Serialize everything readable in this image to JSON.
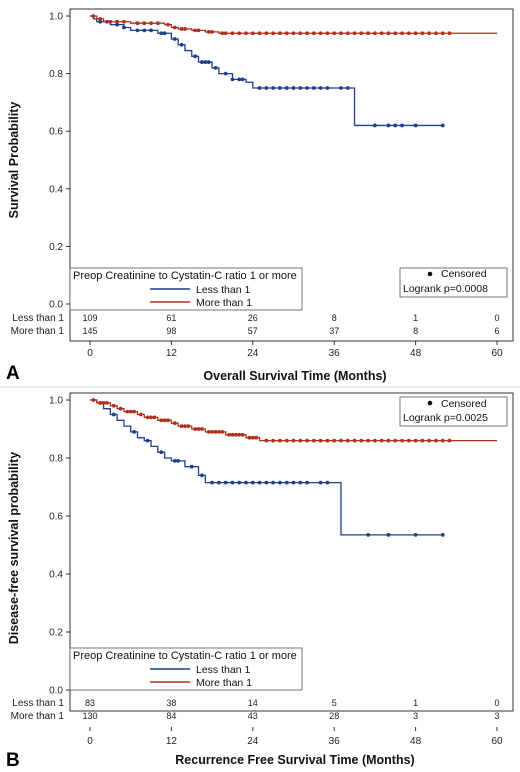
{
  "chart_data": [
    {
      "panel": "A",
      "type": "line",
      "ylabel": "Survival Probability",
      "xlabel": "Overall Survival Time (Months)",
      "xlim": [
        0,
        60
      ],
      "ylim": [
        0,
        1
      ],
      "xticks": [
        0,
        12,
        24,
        36,
        48,
        60
      ],
      "yticks": [
        "0.0",
        "0.2",
        "0.4",
        "0.6",
        "0.8",
        "1.0"
      ],
      "legend_title": "Preop Creatinine to Cystatin-C ratio 1 or more",
      "censored_label": "Censored",
      "test_label": "Logrank p=0.0008",
      "series": [
        {
          "name": "Less than 1",
          "color": "#1f3e8c",
          "steps": [
            [
              0,
              1.0
            ],
            [
              0.5,
              0.99
            ],
            [
              1,
              0.98
            ],
            [
              3,
              0.97
            ],
            [
              5,
              0.96
            ],
            [
              6,
              0.95
            ],
            [
              10,
              0.94
            ],
            [
              12,
              0.92
            ],
            [
              13,
              0.9
            ],
            [
              14,
              0.88
            ],
            [
              15,
              0.86
            ],
            [
              16,
              0.84
            ],
            [
              18,
              0.82
            ],
            [
              19,
              0.8
            ],
            [
              21,
              0.78
            ],
            [
              23,
              0.77
            ],
            [
              24,
              0.75
            ],
            [
              39,
              0.62
            ],
            [
              52,
              0.62
            ]
          ],
          "censored": [
            1.5,
            2.5,
            4,
            5,
            7,
            8,
            9,
            10.5,
            11,
            12.5,
            13.5,
            15.5,
            16.5,
            17,
            17.5,
            18.5,
            20,
            21,
            22,
            22.5,
            25,
            26,
            27,
            28,
            29,
            30,
            31,
            32,
            33,
            34,
            35,
            37,
            38,
            42,
            44,
            45,
            46,
            48,
            52
          ]
        },
        {
          "name": "More than 1",
          "color": "#b0301e",
          "steps": [
            [
              0,
              1.0
            ],
            [
              1,
              0.99
            ],
            [
              2,
              0.98
            ],
            [
              6,
              0.975
            ],
            [
              11,
              0.97
            ],
            [
              12,
              0.96
            ],
            [
              13,
              0.955
            ],
            [
              15,
              0.95
            ],
            [
              17,
              0.945
            ],
            [
              19,
              0.94
            ],
            [
              60,
              0.94
            ]
          ],
          "censored": [
            0.5,
            1.5,
            3,
            4,
            5,
            7,
            8,
            9,
            10,
            11.5,
            12.5,
            13.5,
            14,
            15.5,
            16,
            17.5,
            18,
            19.5,
            20,
            21,
            22,
            23,
            24,
            25,
            26,
            27,
            28,
            29,
            30,
            31,
            32,
            33,
            34,
            35,
            36,
            37,
            38,
            39,
            40,
            41,
            42,
            43,
            44,
            45,
            46,
            47,
            48,
            49,
            50,
            51,
            52,
            53
          ]
        }
      ],
      "risk_table": [
        {
          "label": "Less than 1",
          "values": [
            "109",
            "61",
            "26",
            "8",
            "1",
            "0"
          ]
        },
        {
          "label": "More than 1",
          "values": [
            "145",
            "98",
            "57",
            "37",
            "8",
            "6"
          ]
        }
      ]
    },
    {
      "panel": "B",
      "type": "line",
      "ylabel": "Disease-free survival probability",
      "xlabel": "Recurrence Free Survival Time (Months)",
      "xlim": [
        0,
        60
      ],
      "ylim": [
        0,
        1
      ],
      "xticks": [
        0,
        12,
        24,
        36,
        48,
        60
      ],
      "yticks": [
        "0.0",
        "0.2",
        "0.4",
        "0.6",
        "0.8",
        "1.0"
      ],
      "legend_title": "Preop Creatinine to Cystatin-C ratio 1 or more",
      "censored_label": "Censored",
      "test_label": "Logrank p=0.0025",
      "series": [
        {
          "name": "Less than 1",
          "color": "#1f3e8c",
          "steps": [
            [
              0,
              1.0
            ],
            [
              1,
              0.99
            ],
            [
              2,
              0.97
            ],
            [
              3,
              0.95
            ],
            [
              4,
              0.93
            ],
            [
              5,
              0.91
            ],
            [
              6,
              0.89
            ],
            [
              7,
              0.87
            ],
            [
              8,
              0.86
            ],
            [
              9,
              0.84
            ],
            [
              10,
              0.82
            ],
            [
              11,
              0.8
            ],
            [
              12,
              0.79
            ],
            [
              14,
              0.77
            ],
            [
              16,
              0.74
            ],
            [
              17,
              0.715
            ],
            [
              37,
              0.535
            ],
            [
              52,
              0.535
            ]
          ],
          "censored": [
            1.5,
            3.5,
            6.5,
            8.5,
            10.5,
            12.5,
            13,
            15,
            16.5,
            18,
            19,
            20,
            21,
            22,
            23,
            24,
            25,
            26,
            27,
            28,
            29,
            30,
            31,
            32,
            34,
            35,
            41,
            44,
            48,
            52
          ]
        },
        {
          "name": "More than 1",
          "color": "#b0301e",
          "steps": [
            [
              0,
              1.0
            ],
            [
              1,
              0.99
            ],
            [
              3,
              0.98
            ],
            [
              4,
              0.97
            ],
            [
              5,
              0.96
            ],
            [
              7,
              0.95
            ],
            [
              8,
              0.94
            ],
            [
              10,
              0.93
            ],
            [
              12,
              0.92
            ],
            [
              13,
              0.91
            ],
            [
              15,
              0.9
            ],
            [
              17,
              0.89
            ],
            [
              20,
              0.88
            ],
            [
              23,
              0.87
            ],
            [
              25,
              0.86
            ],
            [
              60,
              0.86
            ]
          ],
          "censored": [
            0.5,
            1.5,
            2,
            2.5,
            3.5,
            4.5,
            5.5,
            6,
            6.5,
            7.5,
            8.5,
            9,
            9.5,
            10.5,
            11,
            11.5,
            12.5,
            13.5,
            14,
            14.5,
            15.5,
            16,
            16.5,
            17.5,
            18,
            18.5,
            19,
            19.5,
            20.5,
            21,
            21.5,
            22,
            22.5,
            23.5,
            24,
            24.5,
            26,
            27,
            28,
            29,
            30,
            31,
            32,
            33,
            34,
            35,
            36,
            37,
            38,
            39,
            40,
            41,
            42,
            43,
            44,
            45,
            46,
            47,
            48,
            49,
            50,
            51,
            52,
            53
          ]
        }
      ],
      "risk_table": [
        {
          "label": "Less than 1",
          "values": [
            "83",
            "38",
            "14",
            "5",
            "1",
            "0"
          ]
        },
        {
          "label": "More than 1",
          "values": [
            "130",
            "84",
            "43",
            "28",
            "3",
            "3"
          ]
        }
      ]
    }
  ]
}
